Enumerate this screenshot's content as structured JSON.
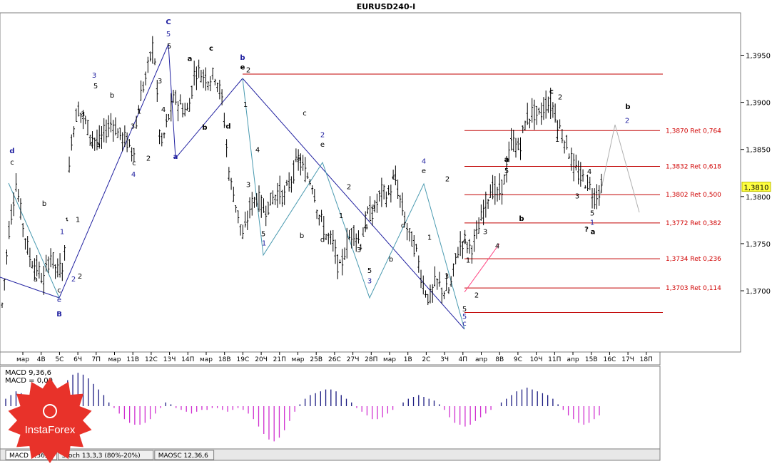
{
  "title": "EURUSD240-I",
  "chart_data": {
    "type": "ohlc",
    "symbol": "EURUSD240-I",
    "ylim": [
      1.3635,
      1.3995
    ],
    "y_ticks": [
      "1,3950",
      "1,3900",
      "1,3850",
      "1,3800",
      "1,3750",
      "1,3700"
    ],
    "current_price": "1,3810",
    "x_ticks": [
      "мар",
      "4В",
      "5С",
      "6Ч",
      "7П",
      "мар",
      "11В",
      "12С",
      "13Ч",
      "14П",
      "мар",
      "18В",
      "19С",
      "20Ч",
      "21П",
      "мар",
      "25В",
      "26С",
      "27Ч",
      "28П",
      "мар",
      "1В",
      "2С",
      "3Ч",
      "4П",
      "апр",
      "8В",
      "9С",
      "10Ч",
      "11П",
      "апр",
      "15В",
      "16С",
      "17Ч",
      "18П",
      "а"
    ],
    "price_path": [
      1.3685,
      1.3765,
      1.3815,
      1.377,
      1.3735,
      1.3725,
      1.371,
      1.374,
      1.372,
      1.373,
      1.386,
      1.3895,
      1.388,
      1.3865,
      1.3855,
      1.387,
      1.388,
      1.3865,
      1.386,
      1.3845,
      1.3905,
      1.393,
      1.3965,
      1.385,
      1.388,
      1.3905,
      1.3895,
      1.389,
      1.3935,
      1.393,
      1.3925,
      1.393,
      1.39,
      1.382,
      1.379,
      1.3755,
      1.379,
      1.38,
      1.3785,
      1.3795,
      1.3805,
      1.38,
      1.382,
      1.384,
      1.3825,
      1.3815,
      1.378,
      1.376,
      1.375,
      1.372,
      1.375,
      1.3765,
      1.375,
      1.378,
      1.3785,
      1.3805,
      1.38,
      1.382,
      1.379,
      1.376,
      1.3745,
      1.371,
      1.369,
      1.371,
      1.37,
      1.37,
      1.374,
      1.3755,
      1.3745,
      1.376,
      1.379,
      1.381,
      1.38,
      1.382,
      1.386,
      1.385,
      1.388,
      1.389,
      1.3885,
      1.39,
      1.3895,
      1.387,
      1.3855,
      1.383,
      1.382,
      1.3815,
      1.38,
      1.381
    ],
    "fib_levels": [
      {
        "price": 1.393,
        "label": ""
      },
      {
        "price": 1.387,
        "label": "1,3870 Ret 0,764"
      },
      {
        "price": 1.3832,
        "label": "1,3832 Ret 0,618"
      },
      {
        "price": 1.3802,
        "label": "1,3802 Ret 0,500"
      },
      {
        "price": 1.3772,
        "label": "1,3772 Ret 0,382"
      },
      {
        "price": 1.3734,
        "label": "1,3734 Ret 0,236"
      },
      {
        "price": 1.3703,
        "label": "1,3703 Ret 0,114"
      },
      {
        "price": 1.3677,
        "label": ""
      }
    ],
    "wave_labels": [
      {
        "text": "d",
        "x": 17,
        "y": 1.3846,
        "color": "#2020a0",
        "bold": true
      },
      {
        "text": "c",
        "x": 17,
        "y": 1.3834,
        "color": "#000000"
      },
      {
        "text": "b",
        "x": 62,
        "y": 1.379,
        "color": "#000000"
      },
      {
        "text": "1",
        "x": 87,
        "y": 1.376,
        "color": "#2020a0"
      },
      {
        "text": "a",
        "x": 50,
        "y": 1.371,
        "color": "#000000"
      },
      {
        "text": "c",
        "x": 83,
        "y": 1.3698,
        "color": "#000000"
      },
      {
        "text": "e",
        "x": 83,
        "y": 1.3688,
        "color": "#2020a0"
      },
      {
        "text": "B",
        "x": 83,
        "y": 1.3673,
        "color": "#2020a0",
        "bold": true
      },
      {
        "text": "2",
        "x": 103,
        "y": 1.371,
        "color": "#2020a0"
      },
      {
        "text": "2",
        "x": 112,
        "y": 1.3713,
        "color": "#000000"
      },
      {
        "text": "1",
        "x": 109,
        "y": 1.3773,
        "color": "#000000"
      },
      {
        "text": "3",
        "x": 132,
        "y": 1.3926,
        "color": "#2020a0"
      },
      {
        "text": "5",
        "x": 134,
        "y": 1.3915,
        "color": "#000000"
      },
      {
        "text": "3",
        "x": 116,
        "y": 1.3885,
        "color": "#000000"
      },
      {
        "text": "4",
        "x": 128,
        "y": 1.3853,
        "color": "#000000"
      },
      {
        "text": "a",
        "x": 138,
        "y": 1.3853,
        "color": "#000000"
      },
      {
        "text": "b",
        "x": 157,
        "y": 1.3905,
        "color": "#000000"
      },
      {
        "text": "1",
        "x": 195,
        "y": 1.3888,
        "color": "#000000"
      },
      {
        "text": "3",
        "x": 186,
        "y": 1.3872,
        "color": "#000000"
      },
      {
        "text": "c",
        "x": 188,
        "y": 1.3833,
        "color": "#000000"
      },
      {
        "text": "4",
        "x": 187,
        "y": 1.3821,
        "color": "#2020a0"
      },
      {
        "text": "2",
        "x": 208,
        "y": 1.3838,
        "color": "#000000"
      },
      {
        "text": "3",
        "x": 224,
        "y": 1.392,
        "color": "#000000"
      },
      {
        "text": "4",
        "x": 229,
        "y": 1.389,
        "color": "#000000"
      },
      {
        "text": "C",
        "x": 236,
        "y": 1.3983,
        "color": "#2020a0",
        "bold": true
      },
      {
        "text": "5",
        "x": 236,
        "y": 1.397,
        "color": "#2020a0"
      },
      {
        "text": "5",
        "x": 237,
        "y": 1.3957,
        "color": "#000000"
      },
      {
        "text": "a",
        "x": 246,
        "y": 1.384,
        "color": "#2020a0",
        "bold": true
      },
      {
        "text": "a",
        "x": 266,
        "y": 1.3944,
        "color": "#000000",
        "bold": true
      },
      {
        "text": "b",
        "x": 287,
        "y": 1.3871,
        "color": "#000000",
        "bold": true
      },
      {
        "text": "c",
        "x": 296,
        "y": 1.3955,
        "color": "#000000",
        "bold": true
      },
      {
        "text": "d",
        "x": 320,
        "y": 1.3872,
        "color": "#000000",
        "bold": true
      },
      {
        "text": "b",
        "x": 340,
        "y": 1.3945,
        "color": "#2020a0",
        "bold": true
      },
      {
        "text": "e",
        "x": 340,
        "y": 1.3935,
        "color": "#000000",
        "bold": true
      },
      {
        "text": "2",
        "x": 348,
        "y": 1.3932,
        "color": "#000000"
      },
      {
        "text": "1",
        "x": 344,
        "y": 1.3895,
        "color": "#000000"
      },
      {
        "text": "4",
        "x": 361,
        "y": 1.3847,
        "color": "#000000"
      },
      {
        "text": "3",
        "x": 348,
        "y": 1.381,
        "color": "#000000"
      },
      {
        "text": "5",
        "x": 369,
        "y": 1.3758,
        "color": "#000000"
      },
      {
        "text": "1",
        "x": 370,
        "y": 1.3748,
        "color": "#2020a0"
      },
      {
        "text": "b",
        "x": 423,
        "y": 1.3756,
        "color": "#000000"
      },
      {
        "text": "d",
        "x": 452,
        "y": 1.3752,
        "color": "#000000"
      },
      {
        "text": "c",
        "x": 427,
        "y": 1.3886,
        "color": "#000000"
      },
      {
        "text": "2",
        "x": 452,
        "y": 1.3863,
        "color": "#2020a0"
      },
      {
        "text": "e",
        "x": 452,
        "y": 1.3853,
        "color": "#000000"
      },
      {
        "text": "a",
        "x": 419,
        "y": 1.3838,
        "color": "#000000"
      },
      {
        "text": "2",
        "x": 489,
        "y": 1.3808,
        "color": "#000000"
      },
      {
        "text": "1",
        "x": 478,
        "y": 1.3777,
        "color": "#000000"
      },
      {
        "text": "a",
        "x": 523,
        "y": 1.3787,
        "color": "#000000"
      },
      {
        "text": "4",
        "x": 513,
        "y": 1.3765,
        "color": "#000000"
      },
      {
        "text": "3",
        "x": 503,
        "y": 1.3741,
        "color": "#000000"
      },
      {
        "text": "5",
        "x": 518,
        "y": 1.3719,
        "color": "#000000"
      },
      {
        "text": "3",
        "x": 518,
        "y": 1.3708,
        "color": "#2020a0"
      },
      {
        "text": "b",
        "x": 548,
        "y": 1.3731,
        "color": "#000000"
      },
      {
        "text": "c",
        "x": 552,
        "y": 1.3818,
        "color": "#000000"
      },
      {
        "text": "d",
        "x": 565,
        "y": 1.3767,
        "color": "#000000"
      },
      {
        "text": "4",
        "x": 594,
        "y": 1.3835,
        "color": "#2020a0"
      },
      {
        "text": "e",
        "x": 594,
        "y": 1.3825,
        "color": "#000000"
      },
      {
        "text": "2",
        "x": 627,
        "y": 1.3816,
        "color": "#000000"
      },
      {
        "text": "1",
        "x": 602,
        "y": 1.3754,
        "color": "#000000"
      },
      {
        "text": "3",
        "x": 626,
        "y": 1.3713,
        "color": "#000000"
      },
      {
        "text": "5",
        "x": 651,
        "y": 1.3678,
        "color": "#000000"
      },
      {
        "text": "5",
        "x": 651,
        "y": 1.367,
        "color": "#2020a0"
      },
      {
        "text": "c",
        "x": 651,
        "y": 1.3663,
        "color": "#2020a0"
      },
      {
        "text": "4",
        "x": 651,
        "y": 1.375,
        "color": "#000000"
      },
      {
        "text": "1",
        "x": 656,
        "y": 1.373,
        "color": "#000000"
      },
      {
        "text": "2",
        "x": 668,
        "y": 1.3693,
        "color": "#000000"
      },
      {
        "text": "3",
        "x": 680,
        "y": 1.376,
        "color": "#000000"
      },
      {
        "text": "4",
        "x": 697,
        "y": 1.3745,
        "color": "#000000"
      },
      {
        "text": "a",
        "x": 710,
        "y": 1.3837,
        "color": "#000000",
        "bold": true
      },
      {
        "text": "5",
        "x": 710,
        "y": 1.3825,
        "color": "#000000"
      },
      {
        "text": "b",
        "x": 731,
        "y": 1.3774,
        "color": "#000000",
        "bold": true
      },
      {
        "text": "c",
        "x": 773,
        "y": 1.3909,
        "color": "#000000",
        "bold": true
      },
      {
        "text": "2",
        "x": 785,
        "y": 1.3903,
        "color": "#000000"
      },
      {
        "text": "1",
        "x": 781,
        "y": 1.3858,
        "color": "#000000"
      },
      {
        "text": "4",
        "x": 826,
        "y": 1.3824,
        "color": "#000000"
      },
      {
        "text": "3",
        "x": 809,
        "y": 1.3798,
        "color": "#000000"
      },
      {
        "text": "5",
        "x": 830,
        "y": 1.378,
        "color": "#000000"
      },
      {
        "text": "1",
        "x": 830,
        "y": 1.377,
        "color": "#2020a0"
      },
      {
        "text": "?",
        "x": 822,
        "y": 1.3763,
        "color": "#000000",
        "bold": true
      },
      {
        "text": "a",
        "x": 831,
        "y": 1.376,
        "color": "#000000",
        "bold": true
      },
      {
        "text": "b",
        "x": 880,
        "y": 1.3893,
        "color": "#000000",
        "bold": true
      },
      {
        "text": "2",
        "x": 879,
        "y": 1.3878,
        "color": "#2020a0"
      }
    ]
  },
  "indicator": {
    "name": "MACD 9,36,6",
    "line2": "MACD = 0,00",
    "histogram": [
      0.2,
      0.3,
      0.4,
      0.35,
      0.3,
      0.25,
      0.2,
      0.1,
      0.05,
      0.1,
      0.3,
      0.5,
      0.7,
      0.85,
      0.9,
      0.85,
      0.75,
      0.6,
      0.45,
      0.3,
      0.1,
      -0.05,
      -0.2,
      -0.35,
      -0.45,
      -0.5,
      -0.5,
      -0.45,
      -0.35,
      -0.2,
      -0.05,
      0.1,
      0.05,
      -0.05,
      -0.1,
      -0.15,
      -0.2,
      -0.15,
      -0.1,
      -0.1,
      -0.05,
      -0.05,
      -0.1,
      -0.15,
      -0.1,
      -0.05,
      -0.1,
      -0.2,
      -0.35,
      -0.55,
      -0.75,
      -0.9,
      -0.95,
      -0.85,
      -0.65,
      -0.4,
      -0.15,
      0.05,
      0.2,
      0.3,
      0.35,
      0.4,
      0.45,
      0.45,
      0.4,
      0.3,
      0.2,
      0.1,
      -0.05,
      -0.15,
      -0.25,
      -0.35,
      -0.35,
      -0.3,
      -0.2,
      -0.1,
      0.0,
      0.1,
      0.2,
      0.25,
      0.3,
      0.25,
      0.2,
      0.15,
      0.05,
      -0.1,
      -0.3,
      -0.45,
      -0.5,
      -0.55,
      -0.5,
      -0.4,
      -0.3,
      -0.2,
      -0.1,
      0.0,
      0.1,
      0.2,
      0.3,
      0.4,
      0.45,
      0.5,
      0.45,
      0.4,
      0.35,
      0.3,
      0.2,
      0.05,
      -0.1,
      -0.25,
      -0.35,
      -0.45,
      -0.5,
      -0.45,
      -0.35,
      -0.25
    ]
  },
  "tabs": [
    "MACD 9,36,6",
    "Stoch 13,3,3 (80%-20%)",
    "MAOSC 12,36,6"
  ],
  "logo_text": "InstaForex"
}
